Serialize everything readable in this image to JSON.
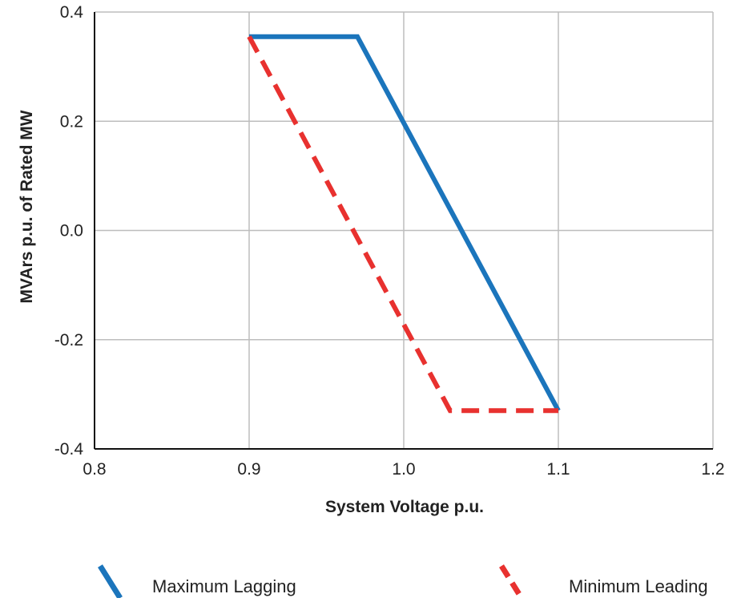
{
  "chart_data": {
    "type": "line",
    "title": "",
    "xlabel": "System Voltage p.u.",
    "ylabel": "MVArs p.u. of Rated MW",
    "xlim": [
      0.8,
      1.2
    ],
    "ylim": [
      -0.4,
      0.4
    ],
    "x_ticks": [
      "0.8",
      "0.9",
      "1.0",
      "1.1",
      "1.2"
    ],
    "y_ticks": [
      "0.4",
      "0.2",
      "0.0",
      "-0.2",
      "-0.4"
    ],
    "grid": true,
    "legend_position": "bottom",
    "series": [
      {
        "name": "Maximum Lagging",
        "color": "#1b75bc",
        "style": "solid",
        "x": [
          0.9,
          0.97,
          1.1
        ],
        "y": [
          0.355,
          0.355,
          -0.33
        ]
      },
      {
        "name": "Minimum Leading",
        "color": "#e8312f",
        "style": "dashed",
        "x": [
          0.9,
          1.03,
          1.1
        ],
        "y": [
          0.355,
          -0.33,
          -0.33
        ]
      }
    ]
  }
}
